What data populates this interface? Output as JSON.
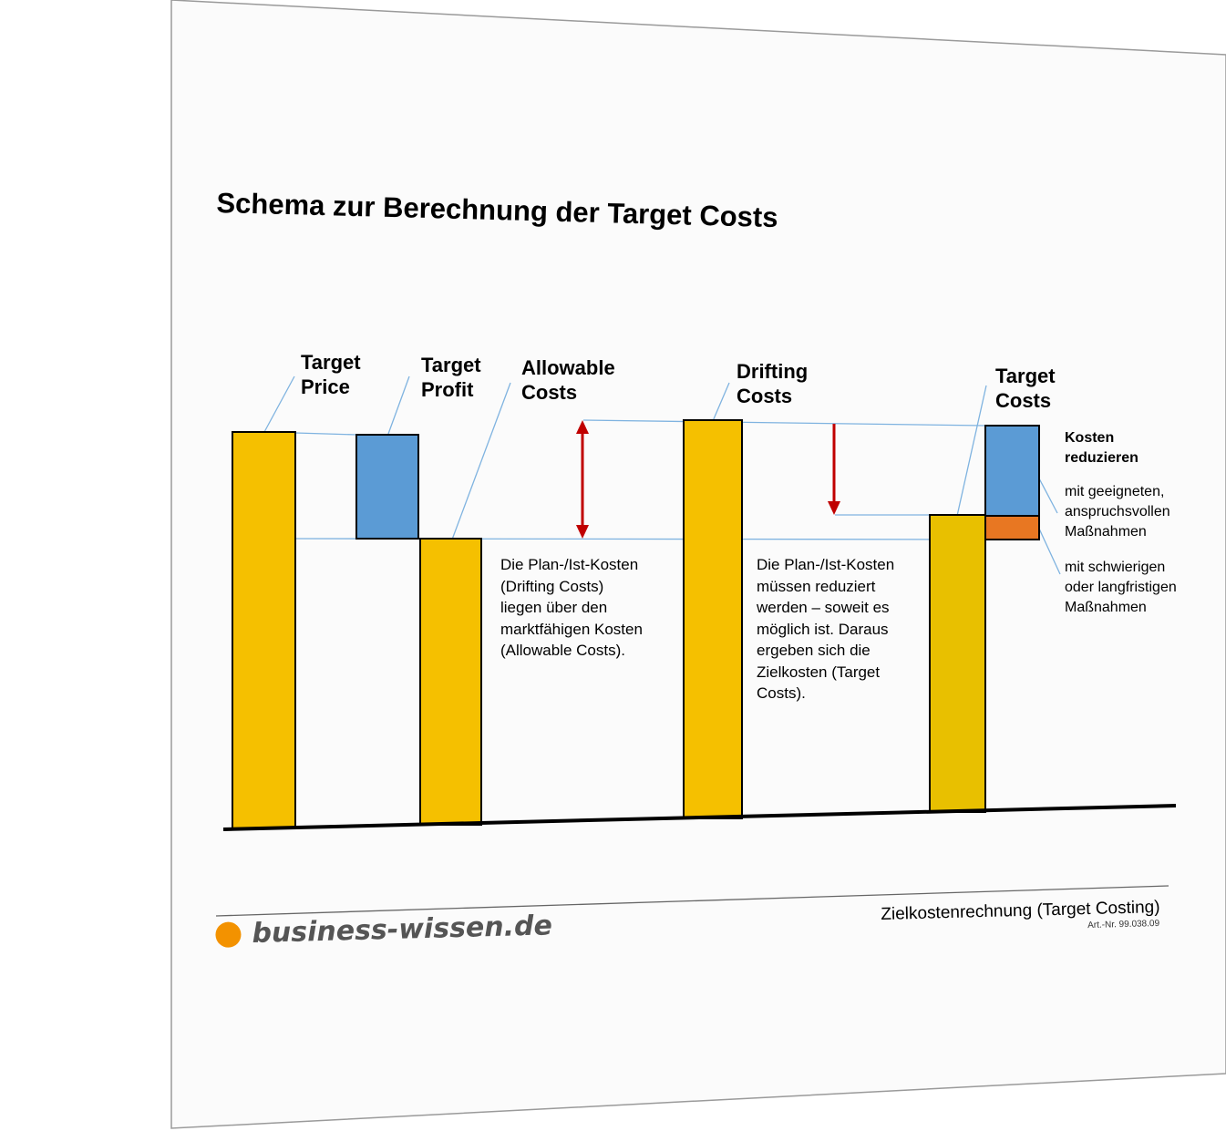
{
  "title": "Schema zur Berechnung der Target Costs",
  "colors": {
    "bar_yellow": "#F5C000",
    "bar_blue": "#5B9BD5",
    "bar_orange": "#E87722",
    "arrow_red": "#C00000",
    "guide_line": "#7FB3E0",
    "brand_dot": "#F39200"
  },
  "bars": [
    {
      "label_line1": "Target",
      "label_line2": "Price"
    },
    {
      "label_line1": "Target",
      "label_line2": "Profit"
    },
    {
      "label_line1": "Allowable",
      "label_line2": "Costs"
    },
    {
      "label_line1": "Drifting",
      "label_line2": "Costs"
    },
    {
      "label_line1": "Target",
      "label_line2": "Costs"
    }
  ],
  "notes": {
    "allowable": [
      "Die Plan-/Ist-Kosten",
      "(Drifting Costs)",
      "liegen über den",
      "marktfähigen Kosten",
      "(Allowable Costs)."
    ],
    "drifting": [
      "Die Plan-/Ist-Kosten",
      "müssen reduziert",
      "werden – soweit es",
      "möglich ist. Daraus",
      "ergeben sich die",
      "Zielkosten (Target",
      "Costs)."
    ]
  },
  "side_notes": {
    "heading_line1": "Kosten",
    "heading_line2": "reduzieren",
    "blue": [
      "mit geeigneten,",
      "anspruchsvollen",
      "Maßnahmen"
    ],
    "orange": [
      "mit schwierigen",
      "oder langfristigen",
      "Maßnahmen"
    ]
  },
  "footer": {
    "title": "Zielkostenrechnung (Target Costing)",
    "art_nr": "Art.-Nr. 99.038.09",
    "brand": "business-wissen.de"
  }
}
